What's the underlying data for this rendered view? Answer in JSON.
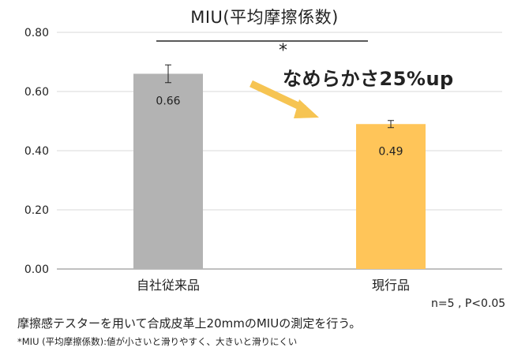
{
  "chart_data": {
    "type": "bar",
    "title": "MIU(平均摩擦係数)",
    "categories": [
      "自社従来品",
      "現行品"
    ],
    "values": [
      0.66,
      0.49
    ],
    "value_labels": [
      "0.66",
      "0.49"
    ],
    "error_bars": [
      0.03,
      0.012
    ],
    "colors": [
      "#b3b3b3",
      "#ffc559"
    ],
    "ylim": [
      0,
      0.8
    ],
    "yticks": [
      "0.00",
      "0.20",
      "0.40",
      "0.60",
      "0.80"
    ],
    "grid": true
  },
  "annotations": {
    "significance": "*",
    "callout": "なめらかさ25%up",
    "arrow_color": "#f6c452",
    "sample": "n=5 , P<0.05"
  },
  "footnotes": {
    "method": "摩擦感テスターを用いて合成皮革上20mmのMIUの測定を行う。",
    "definition": "*MIU (平均摩擦係数):値が小さいと滑りやすく、大きいと滑りにくい"
  }
}
